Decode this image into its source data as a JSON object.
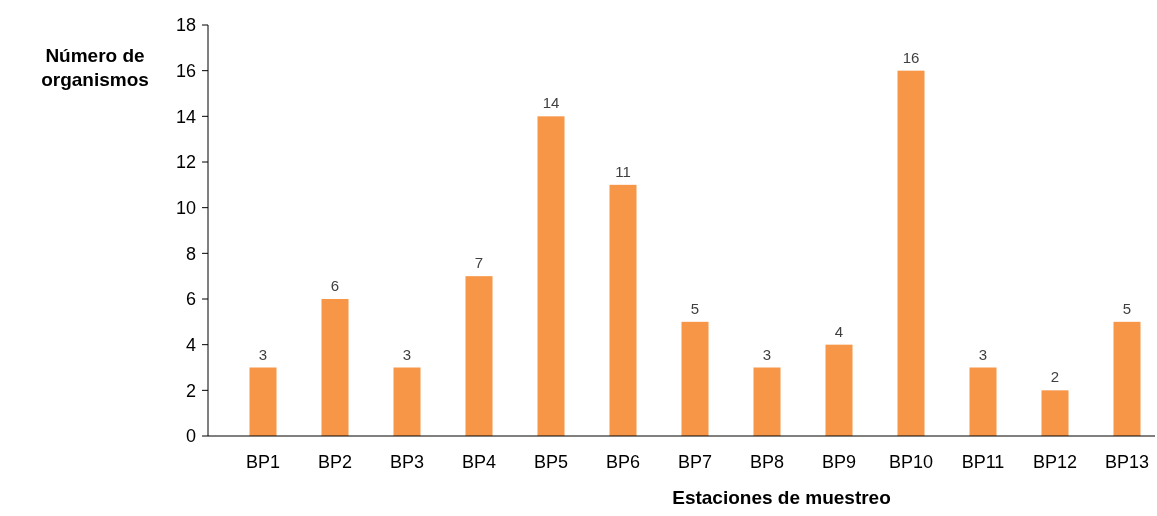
{
  "chart_data": {
    "type": "bar",
    "xlabel": "Estaciones de muestreo",
    "ylabel": "Número de organismos",
    "categories": [
      "BP1",
      "BP2",
      "BP3",
      "BP4",
      "BP5",
      "BP6",
      "BP7",
      "BP8",
      "BP9",
      "BP10",
      "BP11",
      "BP12",
      "BP13"
    ],
    "values": [
      3,
      6,
      3,
      7,
      14,
      11,
      5,
      3,
      4,
      16,
      3,
      2,
      5
    ],
    "color": "#f79646",
    "ylim": [
      0,
      18
    ],
    "yticks": [
      0,
      2,
      4,
      6,
      8,
      10,
      12,
      14,
      16,
      18
    ],
    "grid": false,
    "data_labels": true
  }
}
